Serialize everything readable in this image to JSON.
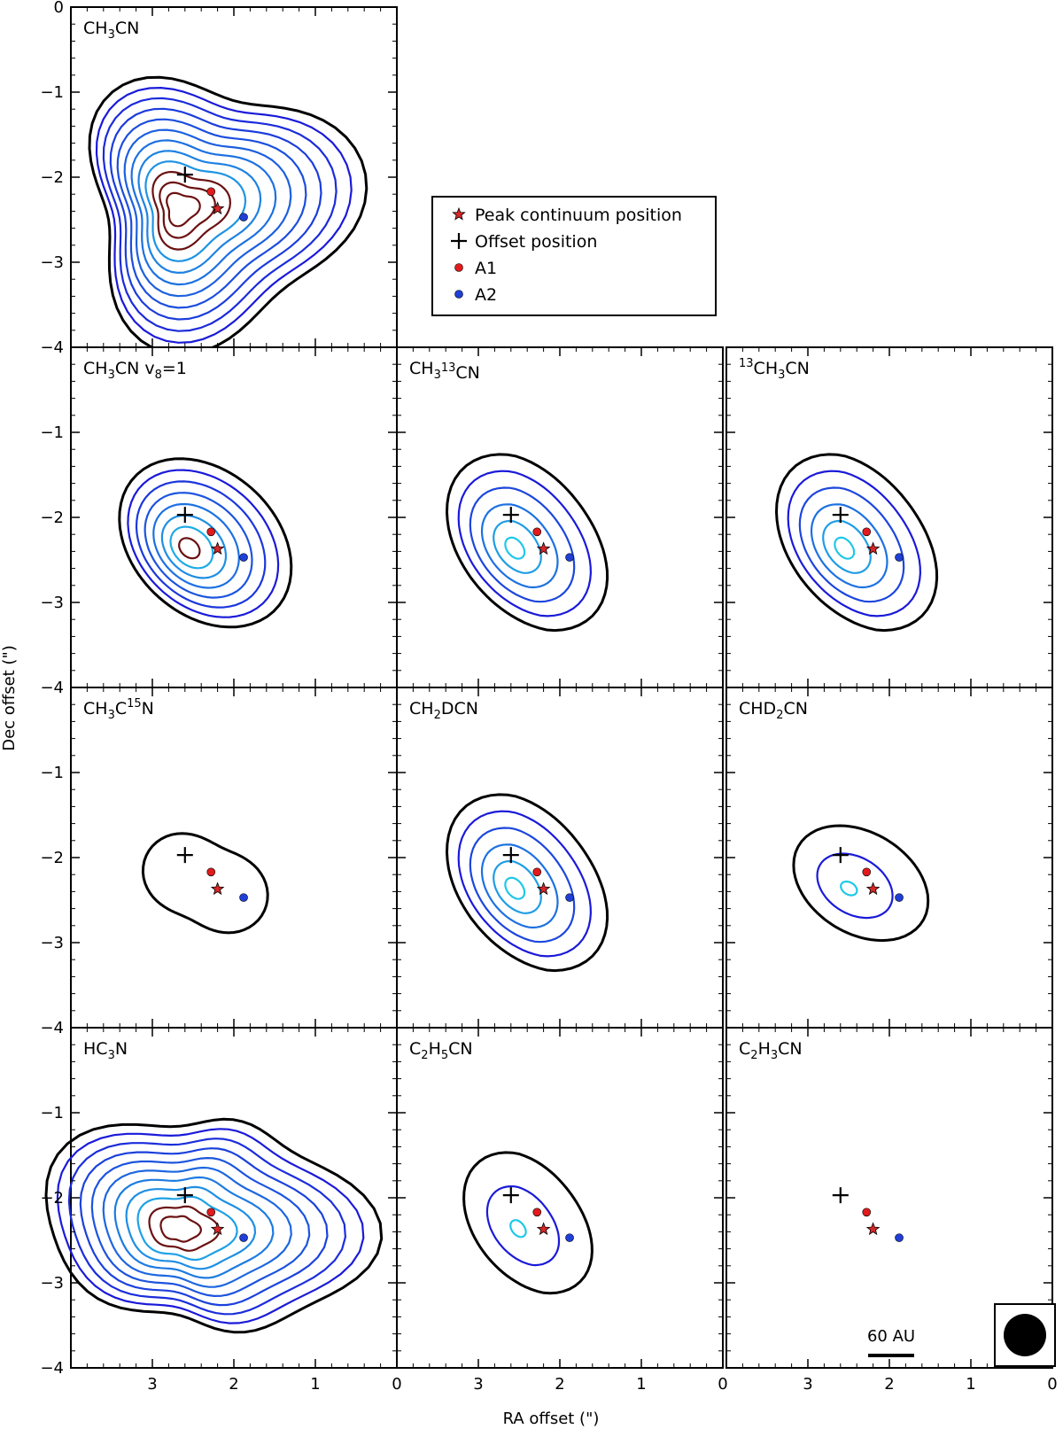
{
  "chart_data": {
    "type": "contour",
    "xlabel": "RA offset (\")",
    "ylabel": "Dec offset (\")",
    "xlim": [
      4,
      0
    ],
    "ylim": [
      -4,
      0
    ],
    "x_ticks": [
      3,
      2,
      1,
      0
    ],
    "y_ticks": [
      0,
      -1,
      -2,
      -3,
      -4
    ],
    "tick_labels_x": [
      "3",
      "2",
      "1",
      "0"
    ],
    "tick_labels_y": [
      "0",
      "−1",
      "−2",
      "−3",
      "−4"
    ],
    "markers": {
      "peak_continuum": {
        "x": 2.2,
        "y": -2.37
      },
      "offset": {
        "x": 2.6,
        "y": -1.97
      },
      "A1": {
        "x": 2.28,
        "y": -2.17
      },
      "A2": {
        "x": 1.88,
        "y": -2.47
      }
    },
    "legend": {
      "placement": "right of top panel",
      "entries": [
        {
          "label": "Peak continuum position",
          "symbol": "star",
          "color": "#d62728"
        },
        {
          "label": "Offset position",
          "symbol": "plus",
          "color": "#000000"
        },
        {
          "label": "A1",
          "symbol": "dot",
          "color": "#e31a1c"
        },
        {
          "label": "A2",
          "symbol": "dot",
          "color": "#1f3fd6"
        }
      ]
    },
    "panels": [
      {
        "id": "p_ch3cn",
        "mol": [
          "CH",
          "3",
          "CN"
        ],
        "n": 12,
        "scale": 1.55,
        "shape": "triangle",
        "maroon": 3
      },
      {
        "id": "p_v8",
        "mol": [
          "CH",
          "3",
          "CN  v",
          "8",
          "=1"
        ],
        "n": 8,
        "scale": 1.0,
        "shape": "oval",
        "maroon": 1
      },
      {
        "id": "p_13c_b",
        "mol": [
          "CH",
          "3",
          "^13",
          "CN"
        ],
        "n": 6,
        "scale": 1.0,
        "shape": "bean",
        "maroon": 0
      },
      {
        "id": "p_13c_a",
        "mol": [
          "^13",
          "CH",
          "3",
          "CN"
        ],
        "n": 6,
        "scale": 1.0,
        "shape": "bean",
        "maroon": 0
      },
      {
        "id": "p_15n",
        "mol": [
          "CH",
          "3",
          "C",
          "^15",
          "N"
        ],
        "n": 1,
        "scale": 0.62,
        "shape": "small",
        "maroon": 0
      },
      {
        "id": "p_ch2dcn",
        "mol": [
          "CH",
          "2",
          "DCN"
        ],
        "n": 6,
        "scale": 1.0,
        "shape": "bean",
        "maroon": 0
      },
      {
        "id": "p_chd2cn",
        "mol": [
          "CHD",
          "2",
          "CN"
        ],
        "n": 3,
        "scale": 0.75,
        "shape": "oval2",
        "maroon": 0
      },
      {
        "id": "p_hc3n",
        "mol": [
          "HC",
          "3",
          "N"
        ],
        "n": 11,
        "scale": 1.6,
        "shape": "wide",
        "maroon": 2
      },
      {
        "id": "p_c2h5cn",
        "mol": [
          "C",
          "2",
          "H",
          "5",
          "CN"
        ],
        "n": 3,
        "scale": 0.8,
        "shape": "bean",
        "maroon": 0
      },
      {
        "id": "p_c2h3cn",
        "mol": [
          "C",
          "2",
          "H",
          "3",
          "CN"
        ],
        "n": 0,
        "scale": 0,
        "shape": "none",
        "maroon": 0
      }
    ],
    "scale_bar_label": "60 AU",
    "beam": "filled circle",
    "colors": {
      "outer": "#000000",
      "blue": "#1a1ad9",
      "cyan": "#20c8e8",
      "maroon": "#6b1111"
    }
  }
}
